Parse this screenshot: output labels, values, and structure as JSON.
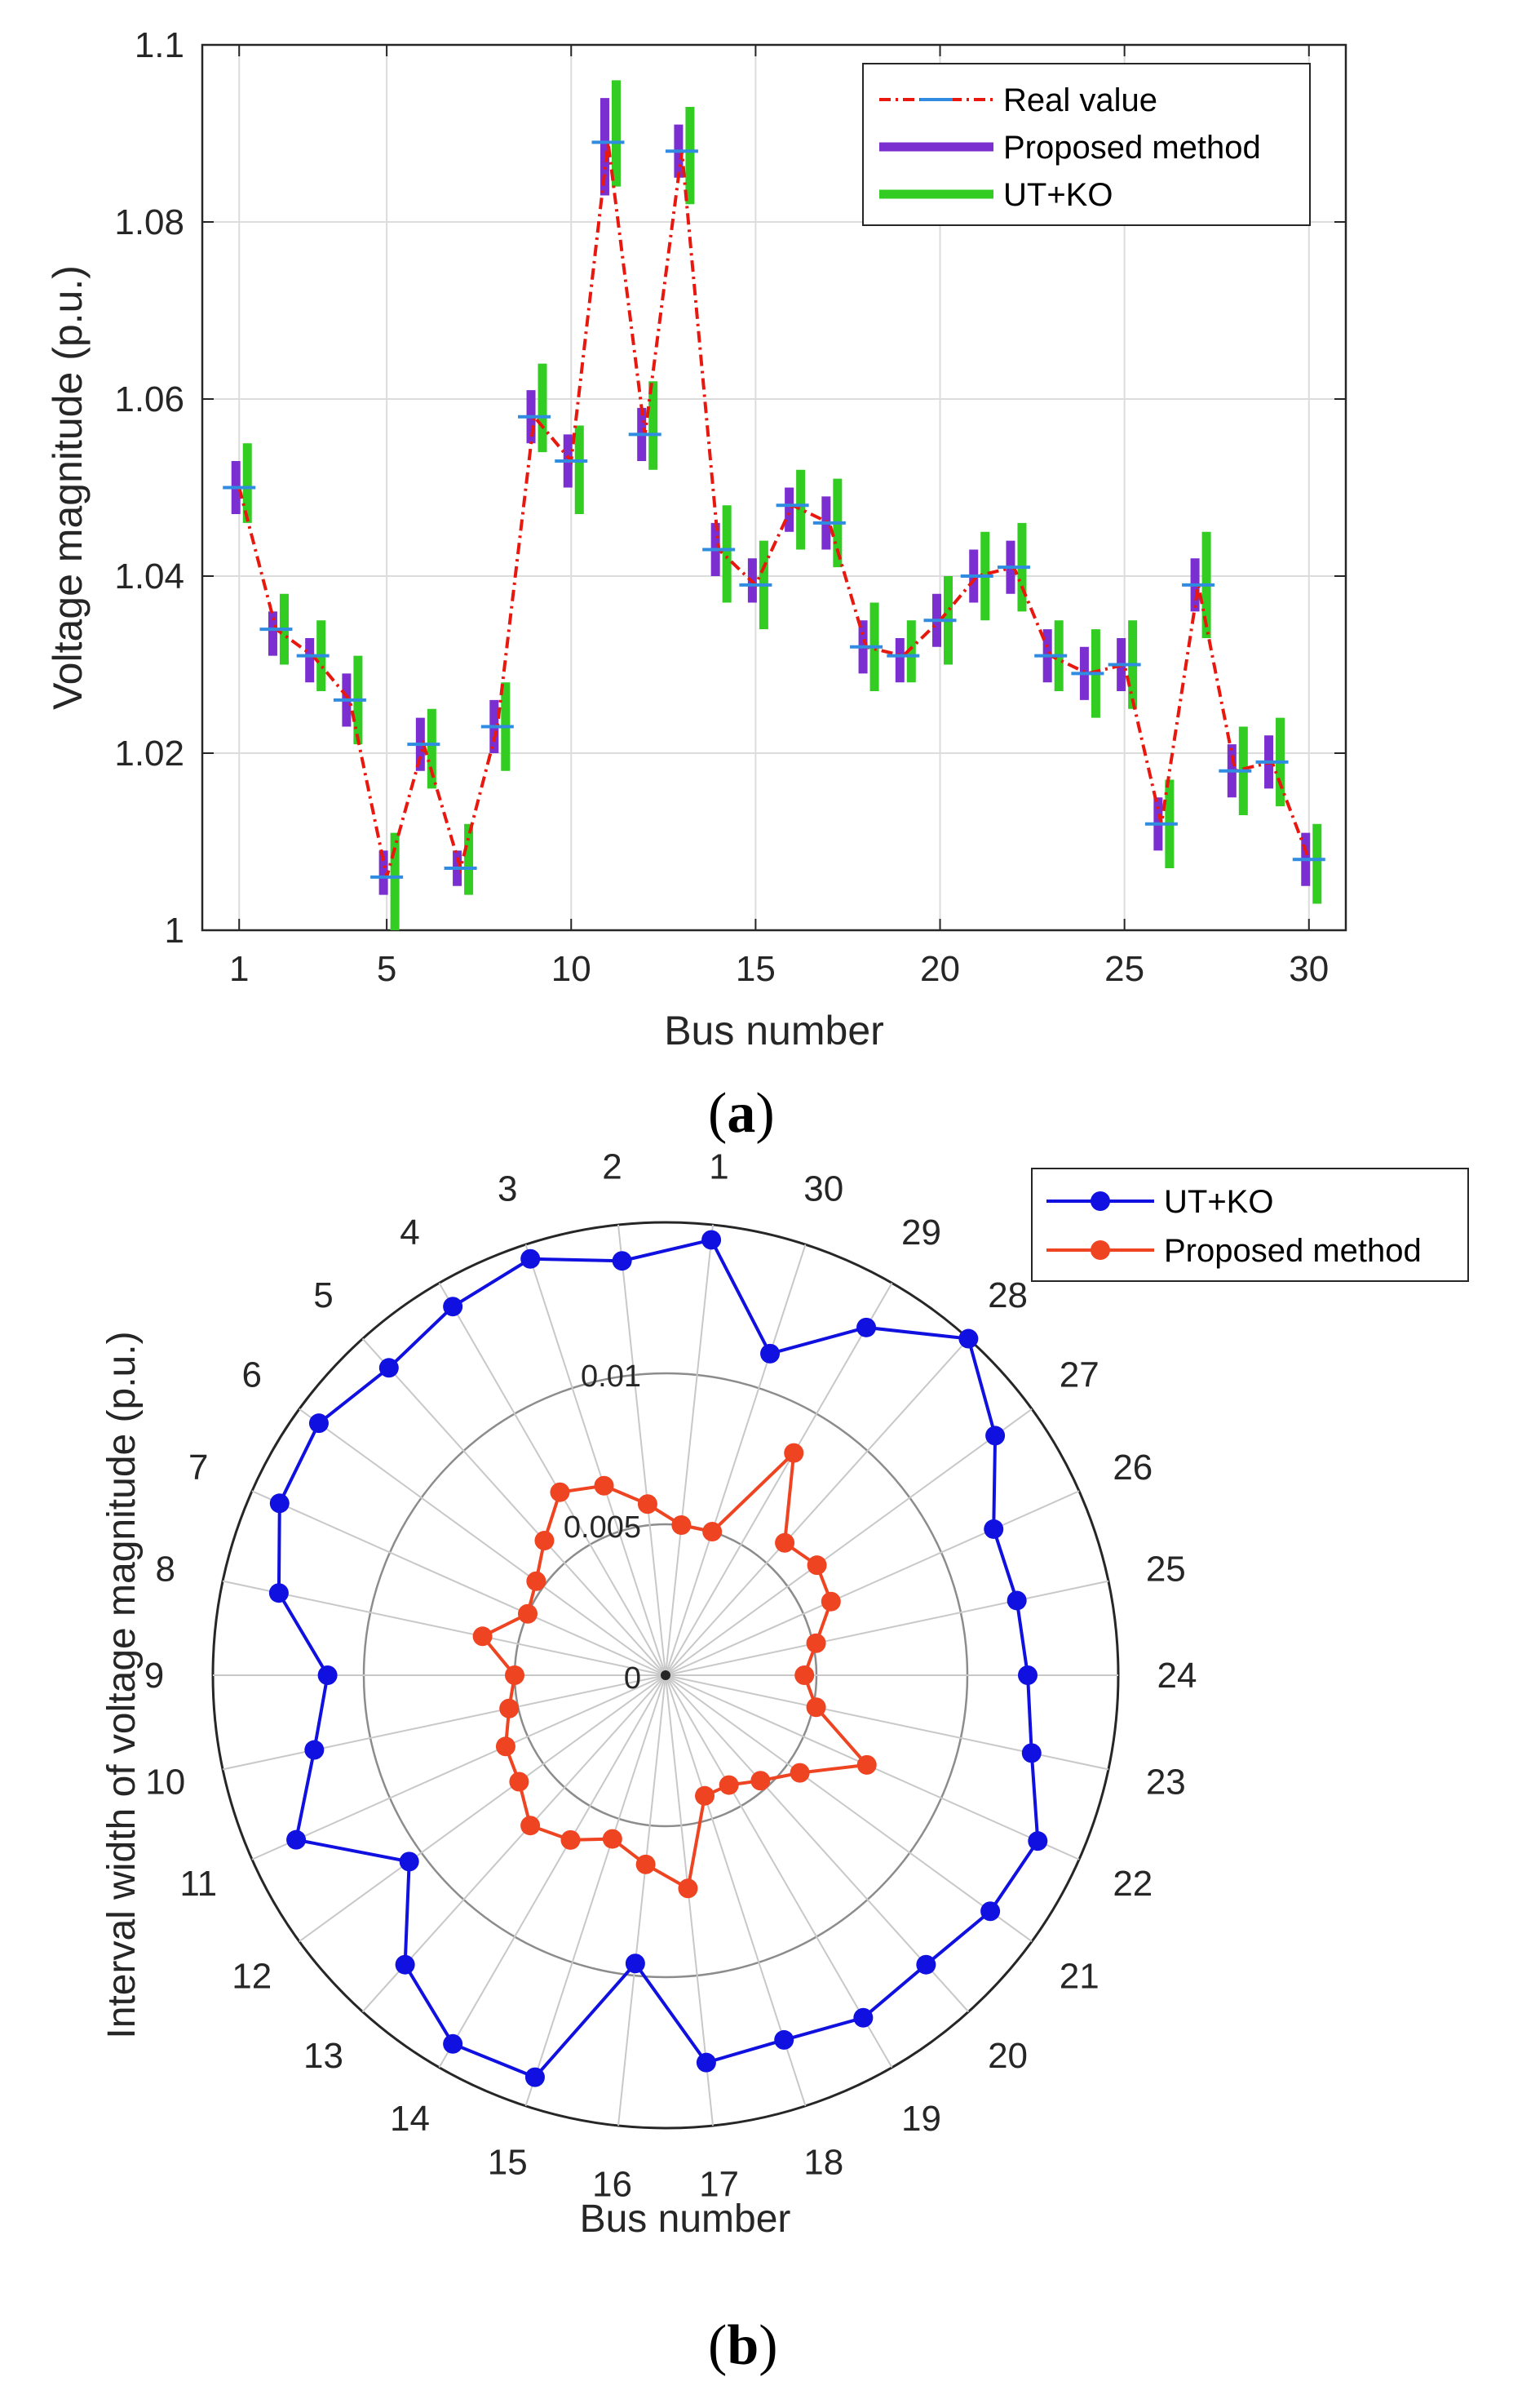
{
  "panels": {
    "a": {
      "label": "a"
    },
    "b": {
      "label": "b"
    }
  },
  "chart_data": [
    {
      "type": "line",
      "xlabel": "Bus number",
      "ylabel": "Voltage magnitude (p.u.)",
      "xlim": [
        0,
        31
      ],
      "ylim": [
        1,
        1.1
      ],
      "xticks": [
        1,
        5,
        10,
        15,
        20,
        25,
        30
      ],
      "yticks": [
        1,
        1.02,
        1.04,
        1.06,
        1.08,
        1.1
      ],
      "ytick_labels": [
        "1",
        "1.02",
        "1.04",
        "1.06",
        "1.08",
        "1.1"
      ],
      "grid": true,
      "legend_position": "top-right",
      "x": [
        1,
        2,
        3,
        4,
        5,
        6,
        7,
        8,
        9,
        10,
        11,
        12,
        13,
        14,
        15,
        16,
        17,
        18,
        19,
        20,
        21,
        22,
        23,
        24,
        25,
        26,
        27,
        28,
        29,
        30
      ],
      "series": [
        {
          "name": "Real value",
          "style": "dash-dot with cross markers",
          "color": "#e8180f",
          "marker_color": "#2f8ce0",
          "values": [
            1.05,
            1.034,
            1.031,
            1.026,
            1.006,
            1.021,
            1.007,
            1.023,
            1.058,
            1.053,
            1.089,
            1.056,
            1.088,
            1.043,
            1.039,
            1.048,
            1.046,
            1.032,
            1.031,
            1.035,
            1.04,
            1.041,
            1.031,
            1.029,
            1.03,
            1.012,
            1.039,
            1.018,
            1.019,
            1.008
          ]
        },
        {
          "name": "Proposed method",
          "style": "interval bars",
          "color": "#7b2fd1",
          "lower": [
            1.047,
            1.031,
            1.028,
            1.023,
            1.004,
            1.018,
            1.005,
            1.02,
            1.055,
            1.05,
            1.083,
            1.053,
            1.085,
            1.04,
            1.037,
            1.045,
            1.043,
            1.029,
            1.028,
            1.032,
            1.037,
            1.038,
            1.028,
            1.026,
            1.027,
            1.009,
            1.036,
            1.015,
            1.016,
            1.005
          ],
          "upper": [
            1.053,
            1.036,
            1.033,
            1.029,
            1.009,
            1.024,
            1.009,
            1.026,
            1.061,
            1.056,
            1.094,
            1.059,
            1.091,
            1.046,
            1.042,
            1.05,
            1.049,
            1.035,
            1.033,
            1.038,
            1.043,
            1.044,
            1.034,
            1.032,
            1.033,
            1.015,
            1.042,
            1.021,
            1.022,
            1.011
          ]
        },
        {
          "name": "UT+KO",
          "style": "interval bars",
          "color": "#33cc22",
          "lower": [
            1.046,
            1.03,
            1.027,
            1.021,
            1.0,
            1.016,
            1.004,
            1.018,
            1.054,
            1.047,
            1.084,
            1.052,
            1.082,
            1.037,
            1.034,
            1.043,
            1.041,
            1.027,
            1.028,
            1.03,
            1.035,
            1.036,
            1.027,
            1.024,
            1.025,
            1.007,
            1.033,
            1.013,
            1.014,
            1.003
          ],
          "upper": [
            1.055,
            1.038,
            1.035,
            1.031,
            1.011,
            1.025,
            1.012,
            1.028,
            1.064,
            1.057,
            1.096,
            1.062,
            1.093,
            1.048,
            1.044,
            1.052,
            1.051,
            1.037,
            1.035,
            1.04,
            1.045,
            1.046,
            1.035,
            1.034,
            1.035,
            1.017,
            1.045,
            1.023,
            1.024,
            1.012
          ]
        }
      ]
    },
    {
      "type": "polar-line",
      "xlabel": "Bus number",
      "ylabel": "Interval width of voltage magnitude (p.u.)",
      "rlim": [
        0,
        0.015
      ],
      "rticks": [
        0,
        0.005,
        0.01
      ],
      "rtick_labels": [
        "0",
        "0.005",
        "0.01"
      ],
      "categories": [
        "1",
        "2",
        "3",
        "4",
        "5",
        "6",
        "7",
        "8",
        "9",
        "10",
        "11",
        "12",
        "13",
        "14",
        "15",
        "16",
        "17",
        "18",
        "19",
        "20",
        "21",
        "22",
        "23",
        "24",
        "25",
        "26",
        "27",
        "28",
        "29",
        "30"
      ],
      "grid": true,
      "legend_position": "top-right",
      "series": [
        {
          "name": "UT+KO",
          "color": "#1010e0",
          "values": [
            0.0145,
            0.0138,
            0.0145,
            0.0141,
            0.0137,
            0.0142,
            0.014,
            0.0131,
            0.0112,
            0.0119,
            0.0134,
            0.0105,
            0.0129,
            0.0141,
            0.014,
            0.0096,
            0.0129,
            0.0127,
            0.0131,
            0.0129,
            0.0133,
            0.0135,
            0.0124,
            0.012,
            0.0119,
            0.0119,
            0.0135,
            0.015,
            0.0133,
            0.0112
          ]
        },
        {
          "name": "Proposed method",
          "color": "#ee4422",
          "values": [
            0.005,
            0.0057,
            0.0066,
            0.007,
            0.006,
            0.0053,
            0.005,
            0.0062,
            0.005,
            0.0053,
            0.0058,
            0.006,
            0.0067,
            0.0063,
            0.0057,
            0.0063,
            0.0071,
            0.0042,
            0.0042,
            0.0047,
            0.0055,
            0.0073,
            0.0051,
            0.0046,
            0.0051,
            0.006,
            0.0062,
            0.0059,
            0.0085,
            0.005
          ]
        }
      ]
    }
  ]
}
